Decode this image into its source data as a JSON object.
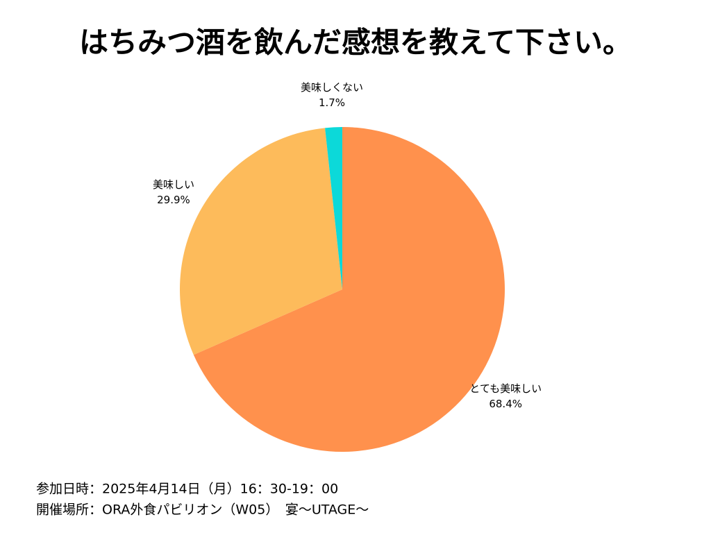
{
  "chart_data": {
    "type": "pie",
    "title": "はちみつ酒を飲んだ感想を教えて下さい。",
    "categories": [
      "とても美味しい",
      "美味しい",
      "美味しくない"
    ],
    "values": [
      68.4,
      29.9,
      1.7
    ],
    "value_labels": [
      "68.4%",
      "29.9%",
      "1.7%"
    ],
    "colors": [
      "#ff914d",
      "#fdbb5b",
      "#0cd9d9"
    ]
  },
  "footer": [
    "参加日時：2025年4月14日（月）16：30-19：00",
    "開催場所：ORA外食パビリオン（W05）　宴〜UTAGE〜"
  ]
}
